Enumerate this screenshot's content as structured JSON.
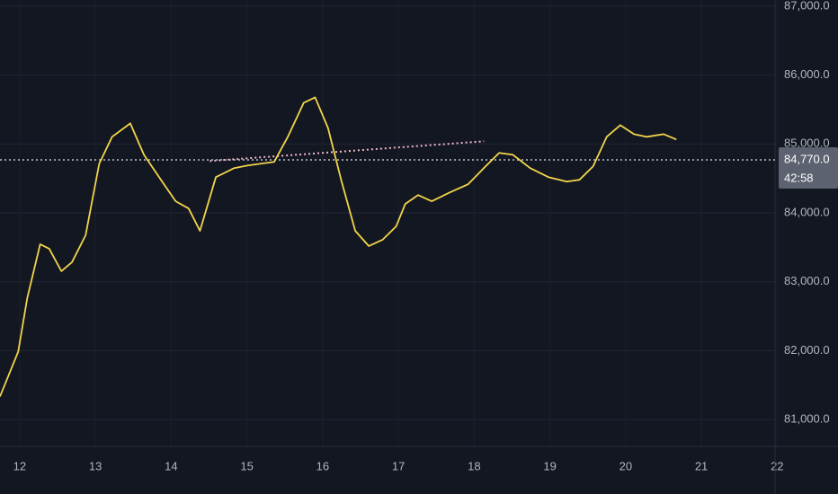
{
  "chart_data": {
    "type": "line",
    "x": [
      11.74,
      11.98,
      12.1,
      12.27,
      12.39,
      12.55,
      12.69,
      12.87,
      13.05,
      13.22,
      13.46,
      13.64,
      13.88,
      14.06,
      14.23,
      14.38,
      14.59,
      14.83,
      15.01,
      15.18,
      15.36,
      15.54,
      15.75,
      15.9,
      16.07,
      16.25,
      16.43,
      16.61,
      16.79,
      16.97,
      17.09,
      17.26,
      17.44,
      17.68,
      17.92,
      18.15,
      18.33,
      18.51,
      18.74,
      18.98,
      19.22,
      19.39,
      19.57,
      19.75,
      19.93,
      20.11,
      20.28,
      20.5,
      20.67
    ],
    "series": [
      {
        "color": "#f2d54a",
        "values": [
          81334,
          81984,
          82764,
          83544,
          83479,
          83154,
          83284,
          83674,
          84714,
          85104,
          85299,
          84844,
          84454,
          84168,
          84064,
          83739,
          84519,
          84649,
          84688,
          84714,
          84740,
          85104,
          85598,
          85676,
          85234,
          84454,
          83739,
          83518,
          83609,
          83804,
          84129,
          84259,
          84168,
          84298,
          84415,
          84675,
          84870,
          84844,
          84649,
          84519,
          84454,
          84480,
          84675,
          85104,
          85273,
          85143,
          85104,
          85143,
          85065
        ]
      }
    ],
    "trend_line": {
      "color": "#f4b6c8",
      "x": [
        14.51,
        18.13
      ],
      "values": [
        84753,
        85039
      ]
    },
    "last_price": {
      "value": 84770,
      "label": "84,770.0"
    },
    "countdown": "42:58",
    "xlim": [
      11.74,
      22.02
    ],
    "xticks": [
      12,
      13,
      14,
      15,
      16,
      17,
      18,
      19,
      20,
      21,
      22
    ],
    "ylim": [
      80610,
      87090
    ],
    "yticks": [
      {
        "value": 81000,
        "label": "81,000.0"
      },
      {
        "value": 82000,
        "label": "82,000.0"
      },
      {
        "value": 83000,
        "label": "83,000.0"
      },
      {
        "value": 84000,
        "label": "84,000.0"
      },
      {
        "value": 85000,
        "label": "85,000.0"
      },
      {
        "value": 86000,
        "label": "86,000.0"
      },
      {
        "value": 87000,
        "label": "87,000.0"
      }
    ],
    "grid": true
  }
}
